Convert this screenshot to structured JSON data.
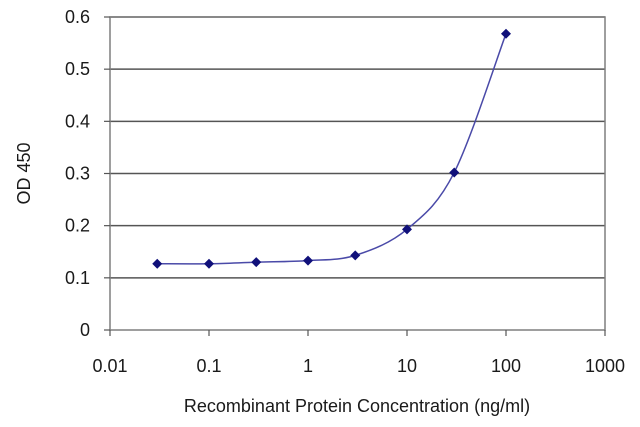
{
  "chart_data": {
    "type": "line",
    "x_scale": "log",
    "xlabel": "Recombinant Protein Concentration (ng/ml)",
    "ylabel": "OD 450",
    "xlim": [
      0.01,
      1000
    ],
    "ylim": [
      0,
      0.6
    ],
    "x_tick_labels": [
      "0.01",
      "0.1",
      "1",
      "10",
      "100",
      "1000"
    ],
    "y_tick_labels": [
      "0",
      "0.1",
      "0.2",
      "0.3",
      "0.4",
      "0.5",
      "0.6"
    ],
    "grid": "horizontal",
    "series": [
      {
        "x": [
          0.03,
          0.1,
          0.3,
          1,
          3,
          10,
          30,
          100
        ],
        "y": [
          0.127,
          0.127,
          0.13,
          0.133,
          0.143,
          0.193,
          0.302,
          0.568
        ],
        "color": "#10107a",
        "line_color": "#4a4aa8"
      }
    ]
  }
}
